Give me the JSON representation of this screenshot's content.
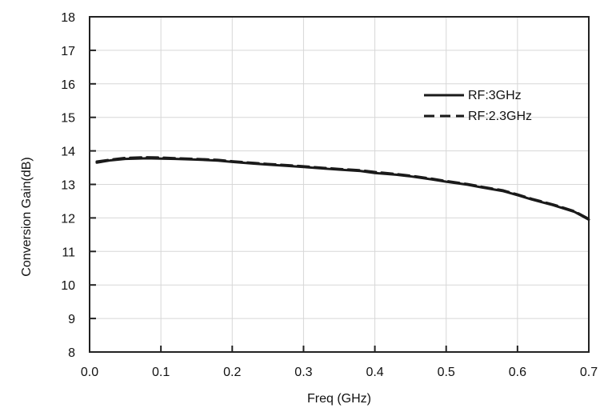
{
  "chart_data": {
    "type": "line",
    "title": "",
    "xlabel": "Freq (GHz)",
    "ylabel": "Conversion Gain(dB)",
    "xlim": [
      0.0,
      0.7
    ],
    "ylim": [
      8,
      18
    ],
    "xticks": [
      "0.0",
      "0.1",
      "0.2",
      "0.3",
      "0.4",
      "0.5",
      "0.6",
      "0.7"
    ],
    "yticks": [
      "8",
      "9",
      "10",
      "11",
      "12",
      "13",
      "14",
      "15",
      "16",
      "17",
      "18"
    ],
    "grid": true,
    "legend_position": "upper-right",
    "series": [
      {
        "name": "RF:3GHz",
        "style": "solid",
        "color": "#1a1a1a",
        "x": [
          0.01,
          0.03,
          0.05,
          0.08,
          0.1,
          0.12,
          0.15,
          0.18,
          0.2,
          0.23,
          0.25,
          0.28,
          0.3,
          0.33,
          0.35,
          0.38,
          0.4,
          0.43,
          0.45,
          0.48,
          0.5,
          0.53,
          0.55,
          0.58,
          0.6,
          0.62,
          0.65,
          0.68,
          0.7
        ],
        "y": [
          13.65,
          13.72,
          13.76,
          13.78,
          13.77,
          13.76,
          13.74,
          13.71,
          13.67,
          13.62,
          13.59,
          13.55,
          13.52,
          13.47,
          13.44,
          13.4,
          13.34,
          13.29,
          13.24,
          13.15,
          13.08,
          12.99,
          12.91,
          12.8,
          12.68,
          12.55,
          12.38,
          12.18,
          11.95
        ]
      },
      {
        "name": "RF:2.3GHz",
        "style": "dashed",
        "color": "#1a1a1a",
        "x": [
          0.01,
          0.03,
          0.05,
          0.08,
          0.1,
          0.12,
          0.15,
          0.18,
          0.2,
          0.23,
          0.25,
          0.28,
          0.3,
          0.33,
          0.35,
          0.38,
          0.4,
          0.43,
          0.45,
          0.48,
          0.5,
          0.53,
          0.55,
          0.58,
          0.6,
          0.62,
          0.65,
          0.68,
          0.7
        ],
        "y": [
          13.68,
          13.74,
          13.79,
          13.81,
          13.8,
          13.78,
          13.76,
          13.73,
          13.69,
          13.64,
          13.61,
          13.57,
          13.54,
          13.49,
          13.46,
          13.42,
          13.37,
          13.31,
          13.26,
          13.17,
          13.1,
          13.01,
          12.93,
          12.82,
          12.7,
          12.57,
          12.4,
          12.2,
          11.97
        ]
      }
    ]
  }
}
